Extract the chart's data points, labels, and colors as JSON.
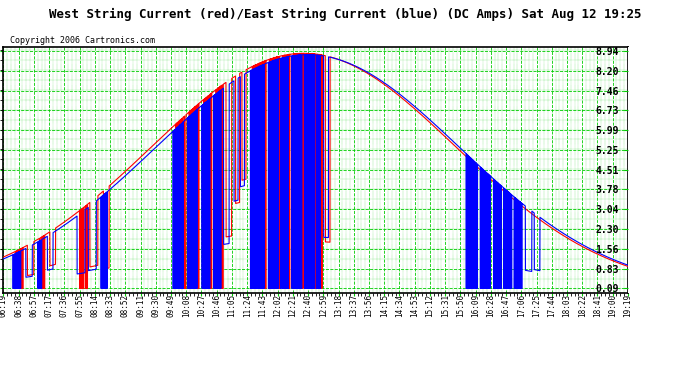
{
  "title": "West String Current (red)/East String Current (blue) (DC Amps) Sat Aug 12 19:25",
  "copyright": "Copyright 2006 Cartronics.com",
  "yticks": [
    0.09,
    0.83,
    1.56,
    2.3,
    3.04,
    3.78,
    4.51,
    5.25,
    5.99,
    6.73,
    7.46,
    8.2,
    8.94
  ],
  "ymin": 0.09,
  "ymax": 8.94,
  "xtick_labels": [
    "06:19",
    "06:38",
    "06:57",
    "07:17",
    "07:36",
    "07:55",
    "08:14",
    "08:33",
    "08:52",
    "09:11",
    "09:30",
    "09:49",
    "10:08",
    "10:27",
    "10:46",
    "11:05",
    "11:24",
    "11:43",
    "12:02",
    "12:21",
    "12:40",
    "12:59",
    "13:18",
    "13:37",
    "13:56",
    "14:15",
    "14:34",
    "14:53",
    "15:12",
    "15:31",
    "15:50",
    "16:09",
    "16:28",
    "16:47",
    "17:06",
    "17:25",
    "17:44",
    "18:03",
    "18:22",
    "18:41",
    "19:00",
    "19:19"
  ],
  "bg_color": "#000000",
  "plot_bg": "#ffffff",
  "grid_color": "#00cc00",
  "red_color": "#ff0000",
  "blue_color": "#0000ff"
}
